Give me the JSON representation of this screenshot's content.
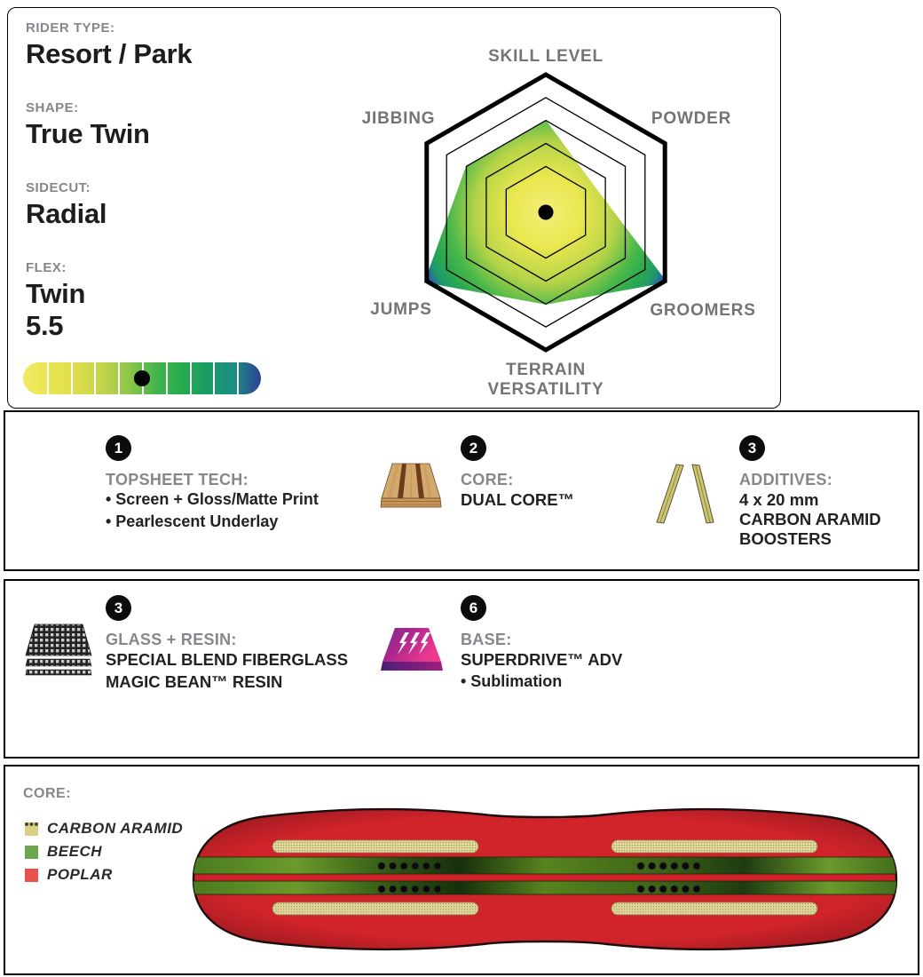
{
  "top_panel": {
    "specs": [
      {
        "label": "RIDER TYPE:",
        "value": "Resort / Park"
      },
      {
        "label": "SHAPE:",
        "value": "True Twin"
      },
      {
        "label": "SIDECUT:",
        "value": "Radial"
      },
      {
        "label": "FLEX:",
        "value": "Twin",
        "value2": "5.5"
      }
    ],
    "flex_bar": {
      "segments": 10,
      "dot_position_pct": 50,
      "colors": [
        "#f2ea62",
        "#e9e552",
        "#dedd4e",
        "#c2d44b",
        "#8fc648",
        "#44b54b",
        "#27ab4e",
        "#199c64",
        "#1b8d84",
        "#2e3f98"
      ]
    }
  },
  "chart_data": {
    "type": "radar",
    "axes": [
      "SKILL LEVEL",
      "POWDER",
      "GROOMERS",
      "TERRAIN VERSATILITY",
      "JUMPS",
      "JIBBING"
    ],
    "values_0_to_1": [
      0.67,
      0.4,
      1.02,
      0.67,
      1.02,
      0.67
    ],
    "rings": [
      0.333,
      0.5,
      0.667,
      0.833,
      1.0
    ],
    "outer_ring_stroke": 5,
    "inner_ring_stroke": 1.3,
    "fill_gradient": [
      {
        "offset": 0,
        "color": "#f2ee79"
      },
      {
        "offset": 0.25,
        "color": "#eae74f"
      },
      {
        "offset": 0.5,
        "color": "#b5d348"
      },
      {
        "offset": 0.68,
        "color": "#4cb84a"
      },
      {
        "offset": 0.8,
        "color": "#2aa84f"
      },
      {
        "offset": 0.88,
        "color": "#1f9a6a"
      },
      {
        "offset": 0.95,
        "color": "#2c5fa7"
      },
      {
        "offset": 1,
        "color": "#2e3192"
      }
    ],
    "center_dot_color": "#000000"
  },
  "features": {
    "row1": [
      {
        "num": "1",
        "label": "TOPSHEET TECH:",
        "lines": [
          "• Screen + Gloss/Matte Print",
          "• Pearlescent Underlay"
        ]
      },
      {
        "num": "2",
        "label": "CORE:",
        "lines": [
          "DUAL CORE™"
        ]
      },
      {
        "num": "3",
        "label": "ADDITIVES:",
        "lines": [
          "4 x 20 mm",
          "CARBON ARAMID",
          "BOOSTERS"
        ]
      }
    ],
    "row2": [
      {
        "num": "3",
        "label": "GLASS + RESIN:",
        "lines": [
          "SPECIAL BLEND FIBERGLASS",
          "MAGIC BEAN™ RESIN"
        ]
      },
      {
        "num": "6",
        "label": "BASE:",
        "lines": [
          "SUPERDRIVE™ ADV",
          "• Sublimation"
        ]
      }
    ]
  },
  "core_panel": {
    "label": "CORE:",
    "legend": [
      {
        "name": "CARBON ARAMID",
        "color": "#d9d085"
      },
      {
        "name": "BEECH",
        "color": "#6aa84f"
      },
      {
        "name": "POPLAR",
        "color": "#e8514d"
      }
    ]
  },
  "board_colors": {
    "red": "#d0232a",
    "red_dark": "#a01b20",
    "outline": "#1c0d0d",
    "green": "#55831f",
    "green_dark": "#1e3b10",
    "tan": "#ded69b",
    "tan_dot": "#a29a58",
    "insert_dot": "#0b0b0b"
  }
}
